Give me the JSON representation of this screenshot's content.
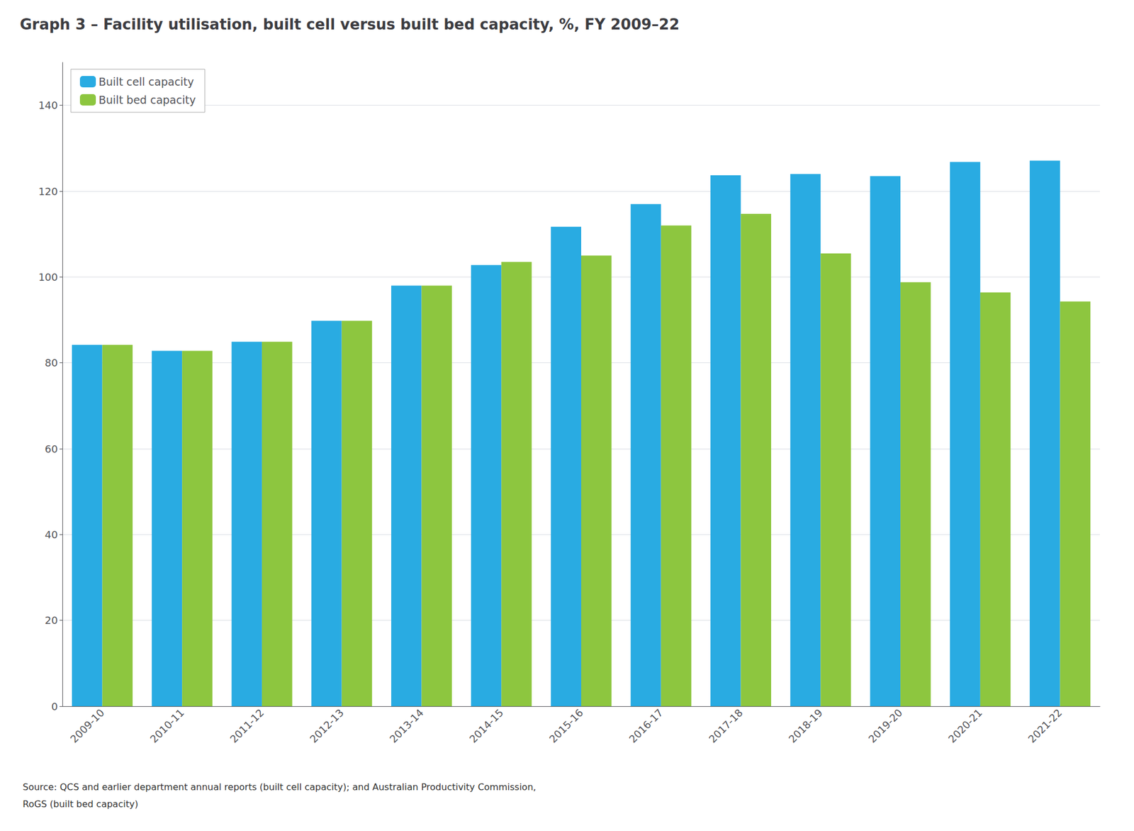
{
  "chart_data": {
    "type": "bar",
    "title": "Graph 3 – Facility utilisation, built cell versus built bed capacity, %, FY 2009–22",
    "categories": [
      "2009-10",
      "2010-11",
      "2011-12",
      "2012-13",
      "2013-14",
      "2014-15",
      "2015-16",
      "2016-17",
      "2017-18",
      "2018-19",
      "2019-20",
      "2020-21",
      "2021-22"
    ],
    "series": [
      {
        "name": "Built cell capacity",
        "color": "#29abe2",
        "values": [
          84.2,
          82.8,
          84.9,
          89.8,
          98.0,
          102.8,
          111.7,
          117.0,
          123.7,
          124.0,
          123.5,
          126.8,
          127.1
        ]
      },
      {
        "name": "Built bed capacity",
        "color": "#8dc63f",
        "values": [
          84.2,
          82.8,
          84.9,
          89.8,
          98.0,
          103.5,
          105.0,
          112.0,
          114.7,
          105.5,
          98.8,
          96.4,
          94.3
        ]
      }
    ],
    "ylim": [
      0,
      150
    ],
    "yticks": [
      0,
      20,
      40,
      60,
      80,
      100,
      120,
      140
    ],
    "grid": true,
    "legend": "upper-left",
    "annotations": [
      "Source: QCS and earlier department annual reports (built cell capacity); and Australian Productivity Commission,",
      "RoGS (built bed capacity)"
    ]
  }
}
